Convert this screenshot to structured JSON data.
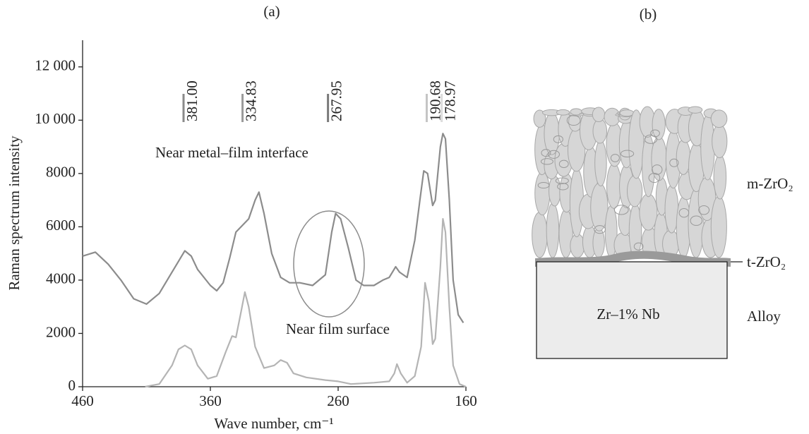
{
  "chart_data": {
    "type": "line",
    "title": "(a)",
    "x_label": "Wave number, cm⁻¹",
    "y_label": "Raman spectrum intensity",
    "xlim": [
      460,
      160
    ],
    "xticks": [
      460,
      360,
      260,
      160
    ],
    "ylim": [
      0,
      13000
    ],
    "yticks": [
      0,
      2000,
      4000,
      6000,
      8000,
      {
        "value": 10000,
        "label": "10 000"
      },
      {
        "value": 12000,
        "label": "12 000"
      }
    ],
    "series": [
      {
        "name": "Near metal–film interface",
        "color": "#8c8c8c",
        "x": [
          460,
          450,
          440,
          430,
          420,
          410,
          400,
          390,
          380,
          375,
          370,
          360,
          355,
          350,
          345,
          340,
          330,
          325,
          322,
          318,
          312,
          305,
          298,
          290,
          280,
          270,
          265,
          262,
          258,
          252,
          246,
          240,
          232,
          225,
          220,
          215,
          212,
          206,
          200,
          196,
          193,
          190,
          186,
          184,
          180,
          178,
          176,
          173,
          170,
          166,
          162
        ],
        "values": [
          4900,
          5050,
          4600,
          4000,
          3300,
          3100,
          3500,
          4300,
          5100,
          4900,
          4400,
          3800,
          3600,
          3900,
          4800,
          5800,
          6300,
          7000,
          7300,
          6500,
          5000,
          4100,
          3900,
          3900,
          3800,
          4200,
          5800,
          6500,
          6300,
          5200,
          4000,
          3800,
          3800,
          4000,
          4100,
          4500,
          4300,
          4100,
          5500,
          7000,
          8100,
          8000,
          6800,
          7000,
          9000,
          9500,
          9300,
          7000,
          4000,
          2700,
          2400
        ]
      },
      {
        "name": "Near film surface",
        "color": "#b4b4b4",
        "x": [
          411,
          400,
          390,
          385,
          380,
          375,
          370,
          362,
          355,
          348,
          343,
          340,
          336,
          333,
          330,
          325,
          318,
          310,
          305,
          300,
          295,
          285,
          270,
          260,
          250,
          232,
          220,
          216,
          214,
          211,
          206,
          200,
          195,
          192,
          189,
          186,
          184,
          180,
          178,
          176,
          173,
          170,
          165,
          160
        ],
        "values": [
          0,
          100,
          800,
          1400,
          1550,
          1400,
          800,
          300,
          400,
          1300,
          1900,
          1850,
          2800,
          3550,
          3000,
          1500,
          700,
          800,
          1000,
          900,
          500,
          350,
          250,
          200,
          100,
          150,
          200,
          500,
          850,
          500,
          150,
          400,
          1500,
          3900,
          3200,
          1600,
          1800,
          4500,
          6300,
          5800,
          3000,
          800,
          100,
          0
        ]
      }
    ],
    "peak_labels": [
      {
        "value": 381,
        "label": "381.00",
        "color": "#8a8a8a"
      },
      {
        "value": 334.83,
        "label": "334.83",
        "color": "#9a9a9a"
      },
      {
        "value": 267.95,
        "label": "267.95",
        "color": "#7a7a7a"
      },
      {
        "value": 190.68,
        "label": "190.68",
        "color": "#c4c4c4"
      },
      {
        "value": 178.97,
        "label": "178.97",
        "color": "#dcdcdc"
      }
    ]
  },
  "diagram": {
    "title": "(b)",
    "top_layer": "m-ZrO₂",
    "interface_layer": "t-ZrO₂",
    "substrate": "Zr–1% Nb",
    "substrate_label": "Alloy"
  }
}
